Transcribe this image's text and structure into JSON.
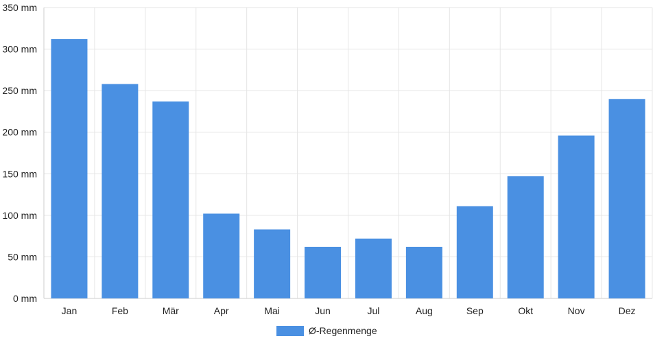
{
  "chart_data": {
    "type": "bar",
    "categories": [
      "Jan",
      "Feb",
      "Mär",
      "Apr",
      "Mai",
      "Jun",
      "Jul",
      "Aug",
      "Sep",
      "Okt",
      "Nov",
      "Dez"
    ],
    "series": [
      {
        "name": "Ø-Regenmenge",
        "values": [
          312,
          258,
          237,
          102,
          83,
          62,
          72,
          62,
          111,
          147,
          196,
          240
        ],
        "color": "#4a90e2"
      }
    ],
    "y_unit": "mm",
    "y_ticks": [
      "0 mm",
      "50 mm",
      "100 mm",
      "150 mm",
      "200 mm",
      "250 mm",
      "300 mm",
      "350 mm"
    ],
    "ylim": [
      0,
      350
    ],
    "grid": true,
    "legend_position": "bottom-center",
    "gridline_color": "#e5e5e5",
    "axis_color": "#cccccc"
  }
}
